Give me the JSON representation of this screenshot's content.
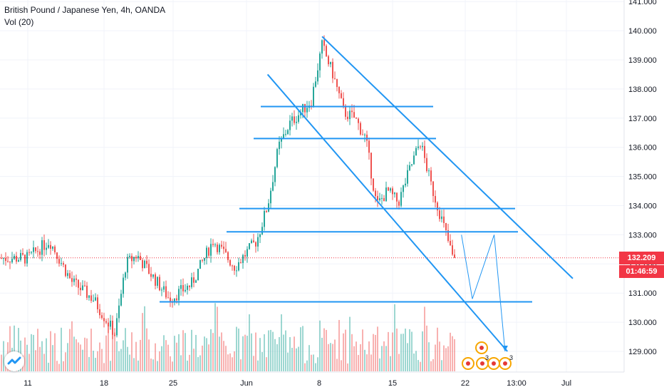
{
  "header": {
    "instrument": "British Pound / Japanese Yen, 4h, OANDA",
    "volume_label": "Vol (20)"
  },
  "price_tags": {
    "last_price": "132.209",
    "countdown": "01:46:59"
  },
  "colors": {
    "up": "#26a69a",
    "down": "#ef5350",
    "drawing": "#2196f3",
    "tag_red": "#f23645",
    "axis_text": "#131722"
  },
  "chart_data": {
    "type": "candlestick",
    "symbol": "GBPJPY",
    "timeframe": "4h",
    "source": "OANDA",
    "y_axis": {
      "ticks": [
        129,
        130,
        131,
        132,
        133,
        134,
        135,
        136,
        137,
        138,
        139,
        140,
        141
      ],
      "tick_labels": [
        "129.000",
        "130.000",
        "131.000",
        "132.000",
        "133.000",
        "134.000",
        "135.000",
        "136.000",
        "137.000",
        "138.000",
        "139.000",
        "140.000",
        "141.000"
      ],
      "range": [
        128.0,
        141.3
      ]
    },
    "x_axis": {
      "tick_labels": [
        "11",
        "18",
        "25",
        "Jun",
        "8",
        "15",
        "22",
        "13:00",
        "Jul"
      ]
    },
    "last_price": 132.209,
    "anchors": [
      {
        "date": "May 11",
        "price": 132.2
      },
      {
        "date": "May 13",
        "price": 132.8
      },
      {
        "date": "May 15",
        "price": 131.4
      },
      {
        "date": "May 17",
        "price": 130.8
      },
      {
        "date": "May 19",
        "price": 129.6
      },
      {
        "date": "May 20",
        "price": 132.0
      },
      {
        "date": "May 21",
        "price": 132.3
      },
      {
        "date": "May 24",
        "price": 130.8
      },
      {
        "date": "May 26",
        "price": 131.3
      },
      {
        "date": "May 28",
        "price": 132.8
      },
      {
        "date": "May 30",
        "price": 131.9
      },
      {
        "date": "Jun 1",
        "price": 132.8
      },
      {
        "date": "Jun 2",
        "price": 134.0
      },
      {
        "date": "Jun 3",
        "price": 136.0
      },
      {
        "date": "Jun 4",
        "price": 136.8
      },
      {
        "date": "Jun 6",
        "price": 137.6
      },
      {
        "date": "Jun 7",
        "price": 139.5
      },
      {
        "date": "Jun 8",
        "price": 138.5
      },
      {
        "date": "Jun 9",
        "price": 137.2
      },
      {
        "date": "Jun 10",
        "price": 137.0
      },
      {
        "date": "Jun 11",
        "price": 136.3
      },
      {
        "date": "Jun 12",
        "price": 134.0
      },
      {
        "date": "Jun 13",
        "price": 134.5
      },
      {
        "date": "Jun 14",
        "price": 134.1
      },
      {
        "date": "Jun 15",
        "price": 135.2
      },
      {
        "date": "Jun 16",
        "price": 136.2
      },
      {
        "date": "Jun 17",
        "price": 134.7
      },
      {
        "date": "Jun 18",
        "price": 133.5
      },
      {
        "date": "Jun 19",
        "price": 132.2
      }
    ],
    "levels": [
      137.4,
      136.3,
      133.9,
      133.1,
      130.7
    ],
    "channel": [
      {
        "from": {
          "date": "Jun 7",
          "price": 139.8
        },
        "to": {
          "date": "Jun 30",
          "price": 131.5
        }
      },
      {
        "from": {
          "date": "Jun 2",
          "price": 138.5
        },
        "to": {
          "date": "Jun 24",
          "price": 129.0
        }
      }
    ],
    "projection": [
      {
        "date": "Jun 19",
        "price": 133.0
      },
      {
        "date": "Jun 20",
        "price": 130.8
      },
      {
        "date": "Jun 22",
        "price": 133.0
      },
      {
        "date": "Jun 23",
        "price": 129.0
      }
    ],
    "volume_series": true
  },
  "events": {
    "badge_count_1": "3",
    "badge_count_2": "3"
  }
}
